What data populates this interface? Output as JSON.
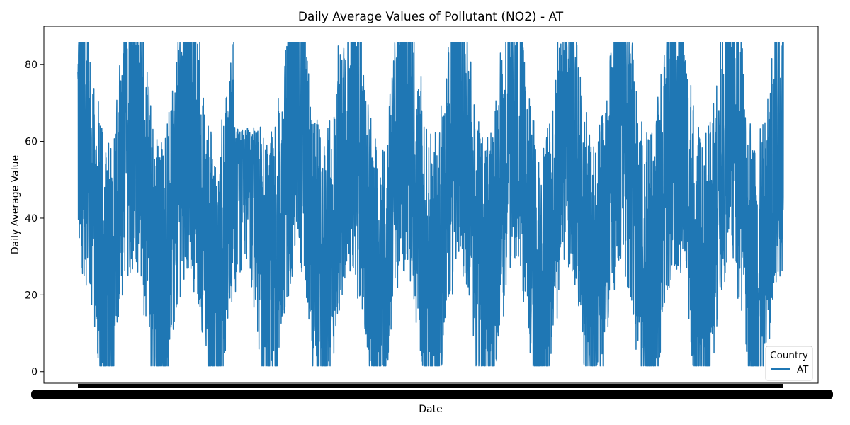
{
  "chart_data": {
    "type": "line",
    "title": "Daily Average Values of Pollutant (NO2) - AT",
    "xlabel": "Date",
    "ylabel": "Daily Average Value",
    "ylim": [
      -3,
      90
    ],
    "yticks": [
      0,
      20,
      40,
      60,
      80
    ],
    "grid": false,
    "legend": {
      "title": "Country",
      "placement": "lower-right"
    },
    "series": [
      {
        "name": "AT",
        "color": "#1f77b4",
        "seasons": [
          {
            "center": 0.6,
            "lo": 7,
            "hi": 77,
            "label": "start"
          },
          {
            "center": 2.0,
            "lo": 3,
            "hi": 86,
            "label": "peak"
          },
          {
            "center": 3.35,
            "lo": 3,
            "hi": 86,
            "label": "peak"
          },
          {
            "center": 4.05,
            "lo": 2,
            "hi": 64,
            "label": "dip"
          },
          {
            "center": 4.75,
            "lo": 3,
            "hi": 86,
            "label": "peak"
          },
          {
            "center": 6.1,
            "lo": 3,
            "hi": 86,
            "label": "peak"
          },
          {
            "center": 7.45,
            "lo": 4,
            "hi": 86,
            "label": "peak"
          },
          {
            "center": 8.8,
            "lo": 3,
            "hi": 86,
            "label": "peak"
          },
          {
            "center": 10.15,
            "lo": 4,
            "hi": 86,
            "label": "peak"
          },
          {
            "center": 11.5,
            "lo": 3,
            "hi": 86,
            "label": "peak"
          },
          {
            "center": 12.85,
            "lo": 4,
            "hi": 86,
            "label": "peak"
          },
          {
            "center": 14.2,
            "lo": 2,
            "hi": 86,
            "label": "peak"
          },
          {
            "center": 15.55,
            "lo": 3,
            "hi": 86,
            "label": "peak"
          }
        ],
        "range_summary": {
          "min": 1.5,
          "max": 86,
          "typical_low_trough": 35,
          "typical_high_trough": 85
        }
      }
    ]
  }
}
